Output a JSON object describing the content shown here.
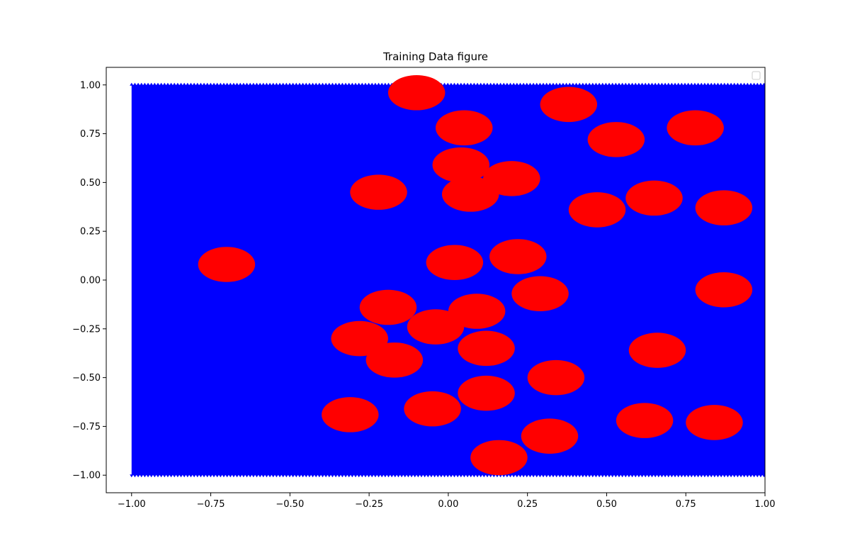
{
  "chart_data": {
    "type": "scatter",
    "title": "Training Data figure",
    "xlabel": "",
    "ylabel": "",
    "xlim": [
      -1.08,
      1.0
    ],
    "ylim": [
      -1.09,
      1.09
    ],
    "x_ticks": [
      -1.0,
      -0.75,
      -0.5,
      -0.25,
      0.0,
      0.25,
      0.5,
      0.75,
      1.0
    ],
    "x_tick_labels": [
      "−1.00",
      "−0.75",
      "−0.50",
      "−0.25",
      "0.00",
      "0.25",
      "0.50",
      "0.75",
      "1.00"
    ],
    "y_ticks": [
      -1.0,
      -0.75,
      -0.5,
      -0.25,
      0.0,
      0.25,
      0.5,
      0.75,
      1.0
    ],
    "y_tick_labels": [
      "−1.00",
      "−0.75",
      "−0.50",
      "−0.25",
      "0.00",
      "0.25",
      "0.50",
      "0.75",
      "1.00"
    ],
    "grid": false,
    "legend": {
      "placement": "top-right",
      "entries": []
    },
    "series": [
      {
        "color": "#0000ff",
        "marker": "triangle",
        "region": {
          "x": [
            -1.0,
            1.0
          ],
          "y": [
            -1.0,
            1.0
          ]
        }
      },
      {
        "color": "#ff0000",
        "marker": "circle",
        "radius_x": 0.09,
        "radius_y": 0.09,
        "centers": [
          [
            -0.1,
            0.96
          ],
          [
            0.38,
            0.9
          ],
          [
            0.05,
            0.78
          ],
          [
            0.53,
            0.72
          ],
          [
            0.78,
            0.78
          ],
          [
            0.04,
            0.59
          ],
          [
            0.2,
            0.52
          ],
          [
            0.07,
            0.44
          ],
          [
            -0.22,
            0.45
          ],
          [
            0.47,
            0.36
          ],
          [
            0.65,
            0.42
          ],
          [
            0.87,
            0.37
          ],
          [
            -0.7,
            0.08
          ],
          [
            0.02,
            0.09
          ],
          [
            0.22,
            0.12
          ],
          [
            0.87,
            -0.05
          ],
          [
            0.29,
            -0.07
          ],
          [
            -0.19,
            -0.14
          ],
          [
            0.09,
            -0.16
          ],
          [
            -0.04,
            -0.24
          ],
          [
            -0.28,
            -0.3
          ],
          [
            -0.17,
            -0.41
          ],
          [
            0.12,
            -0.35
          ],
          [
            0.66,
            -0.36
          ],
          [
            0.34,
            -0.5
          ],
          [
            0.12,
            -0.58
          ],
          [
            -0.05,
            -0.66
          ],
          [
            -0.31,
            -0.69
          ],
          [
            0.62,
            -0.72
          ],
          [
            0.84,
            -0.73
          ],
          [
            0.32,
            -0.8
          ],
          [
            0.16,
            -0.91
          ]
        ]
      }
    ]
  }
}
